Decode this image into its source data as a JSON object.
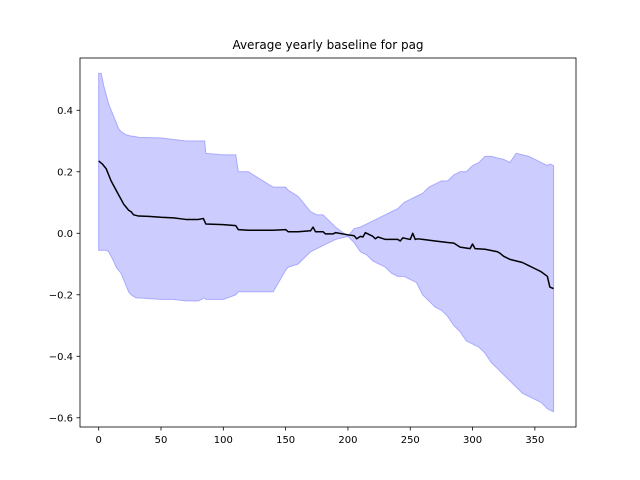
{
  "chart_data": {
    "type": "area",
    "title": "Average yearly baseline for pag",
    "xlabel": "",
    "ylabel": "",
    "xlim": [
      -15,
      383
    ],
    "ylim": [
      -0.63,
      0.57
    ],
    "xticks": [
      0,
      50,
      100,
      150,
      200,
      250,
      300,
      350
    ],
    "yticks": [
      -0.6,
      -0.4,
      -0.2,
      0.0,
      0.2,
      0.4
    ],
    "ytick_labels": [
      "−0.6",
      "−0.4",
      "−0.2",
      "0.0",
      "0.2",
      "0.4"
    ],
    "grid": false,
    "colors": {
      "mean_line": "#000000",
      "band_fill": "#ccccff",
      "band_edge": "#a9a9ff"
    },
    "series": [
      {
        "kind": "line",
        "x": [
          0,
          3,
          6,
          8,
          10,
          12,
          14,
          16,
          18,
          20,
          22,
          24,
          26,
          28,
          30,
          32,
          40,
          50,
          60,
          70,
          80,
          84,
          86,
          100,
          110,
          112,
          120,
          140,
          150,
          152,
          160,
          170,
          172,
          174,
          180,
          182,
          188,
          190,
          200,
          205,
          207,
          210,
          212,
          214,
          220,
          222,
          224,
          230,
          240,
          242,
          244,
          250,
          252,
          254,
          256,
          260,
          270,
          280,
          285,
          290,
          298,
          300,
          302,
          310,
          320,
          322,
          325,
          330,
          340,
          345,
          350,
          355,
          360,
          362,
          365
        ],
        "y": [
          0.235,
          0.225,
          0.21,
          0.19,
          0.17,
          0.155,
          0.14,
          0.125,
          0.11,
          0.095,
          0.085,
          0.075,
          0.07,
          0.06,
          0.058,
          0.056,
          0.055,
          0.052,
          0.05,
          0.045,
          0.045,
          0.048,
          0.03,
          0.028,
          0.025,
          0.012,
          0.01,
          0.01,
          0.012,
          0.005,
          0.005,
          0.008,
          0.02,
          0.005,
          0.005,
          -0.002,
          -0.002,
          0.002,
          -0.005,
          -0.008,
          -0.018,
          -0.01,
          -0.012,
          0.002,
          -0.01,
          -0.018,
          -0.012,
          -0.02,
          -0.02,
          -0.025,
          -0.015,
          -0.02,
          0.0,
          -0.02,
          -0.018,
          -0.02,
          -0.025,
          -0.03,
          -0.032,
          -0.045,
          -0.05,
          -0.035,
          -0.05,
          -0.052,
          -0.06,
          -0.065,
          -0.075,
          -0.085,
          -0.095,
          -0.105,
          -0.115,
          -0.125,
          -0.14,
          -0.175,
          -0.18
        ]
      },
      {
        "kind": "band",
        "x": [
          0,
          2,
          4,
          6,
          8,
          10,
          12,
          14,
          16,
          18,
          20,
          22,
          24,
          26,
          28,
          30,
          32,
          50,
          60,
          70,
          80,
          85,
          86,
          100,
          110,
          112,
          120,
          140,
          150,
          152,
          160,
          170,
          175,
          180,
          190,
          200,
          205,
          210,
          215,
          220,
          225,
          230,
          235,
          240,
          245,
          250,
          255,
          260,
          265,
          270,
          275,
          280,
          285,
          290,
          295,
          300,
          305,
          310,
          315,
          320,
          325,
          330,
          335,
          340,
          345,
          350,
          355,
          360,
          362,
          365
        ],
        "upper": [
          0.52,
          0.52,
          0.48,
          0.45,
          0.42,
          0.4,
          0.38,
          0.36,
          0.34,
          0.33,
          0.325,
          0.32,
          0.318,
          0.316,
          0.315,
          0.314,
          0.312,
          0.31,
          0.305,
          0.3,
          0.3,
          0.3,
          0.26,
          0.255,
          0.255,
          0.2,
          0.2,
          0.15,
          0.15,
          0.14,
          0.12,
          0.07,
          0.06,
          0.06,
          0.02,
          -0.01,
          0.015,
          0.02,
          0.03,
          0.04,
          0.05,
          0.06,
          0.07,
          0.08,
          0.1,
          0.11,
          0.12,
          0.13,
          0.15,
          0.16,
          0.17,
          0.17,
          0.19,
          0.2,
          0.2,
          0.22,
          0.23,
          0.25,
          0.25,
          0.245,
          0.24,
          0.23,
          0.26,
          0.255,
          0.25,
          0.24,
          0.23,
          0.22,
          0.225,
          0.22
        ],
        "lower": [
          -0.055,
          -0.055,
          -0.055,
          -0.055,
          -0.06,
          -0.075,
          -0.09,
          -0.11,
          -0.12,
          -0.13,
          -0.15,
          -0.17,
          -0.19,
          -0.2,
          -0.205,
          -0.21,
          -0.21,
          -0.215,
          -0.215,
          -0.22,
          -0.22,
          -0.21,
          -0.215,
          -0.215,
          -0.2,
          -0.19,
          -0.19,
          -0.19,
          -0.12,
          -0.11,
          -0.1,
          -0.06,
          -0.05,
          -0.04,
          -0.02,
          -0.01,
          -0.03,
          -0.06,
          -0.07,
          -0.09,
          -0.1,
          -0.11,
          -0.13,
          -0.14,
          -0.14,
          -0.15,
          -0.16,
          -0.2,
          -0.22,
          -0.24,
          -0.25,
          -0.27,
          -0.3,
          -0.32,
          -0.35,
          -0.36,
          -0.37,
          -0.39,
          -0.42,
          -0.44,
          -0.46,
          -0.48,
          -0.5,
          -0.52,
          -0.53,
          -0.54,
          -0.55,
          -0.57,
          -0.575,
          -0.58
        ]
      }
    ]
  }
}
